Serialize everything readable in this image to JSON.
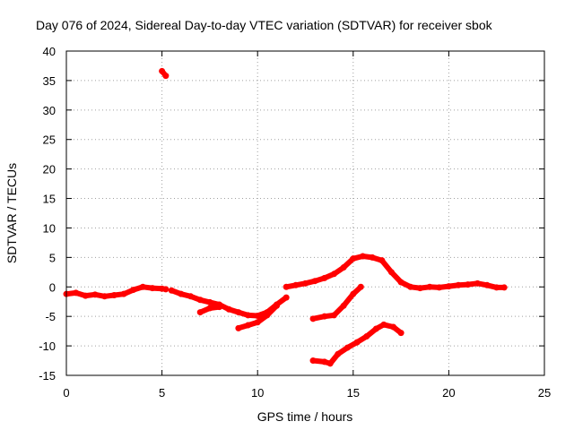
{
  "chart_data": {
    "type": "scatter",
    "title": "Day 076 of 2024, Sidereal Day-to-day VTEC variation (SDTVAR) for receiver sbok",
    "xlabel": "GPS time / hours",
    "ylabel": "SDTVAR / TECUs",
    "xlim": [
      0,
      25
    ],
    "ylim": [
      -15,
      40
    ],
    "xticks": [
      "0",
      "5",
      "10",
      "15",
      "20",
      "25"
    ],
    "yticks": [
      "-15",
      "-10",
      "-5",
      "0",
      "5",
      "10",
      "15",
      "20",
      "25",
      "30",
      "35",
      "40"
    ],
    "grid": true,
    "color": "#ff0000",
    "series": [
      {
        "name": "segment-1",
        "x": [
          0,
          0.5,
          1.0,
          1.5,
          2.0,
          2.5,
          3.0,
          3.5,
          4.0,
          4.5,
          5.0,
          5.2
        ],
        "y": [
          -1.2,
          -1.0,
          -1.5,
          -1.3,
          -1.6,
          -1.4,
          -1.2,
          -0.5,
          0.0,
          -0.2,
          -0.3,
          -0.4
        ]
      },
      {
        "name": "segment-spike",
        "x": [
          5.0,
          5.2
        ],
        "y": [
          36.6,
          35.8
        ]
      },
      {
        "name": "segment-2",
        "x": [
          5.5,
          6.0,
          6.5,
          7.0,
          7.5,
          8.0,
          8.5,
          9.0,
          9.5,
          10.0,
          10.5,
          11.0,
          11.5
        ],
        "y": [
          -0.6,
          -1.2,
          -1.6,
          -2.2,
          -2.6,
          -3.0,
          -3.8,
          -4.3,
          -4.8,
          -4.9,
          -4.3,
          -3.0,
          -1.8
        ]
      },
      {
        "name": "segment-2b",
        "x": [
          7.0,
          7.5,
          8.0
        ],
        "y": [
          -4.3,
          -3.6,
          -3.4
        ]
      },
      {
        "name": "segment-2c",
        "x": [
          9.0,
          9.5,
          10.0,
          10.5,
          11.0
        ],
        "y": [
          -7.0,
          -6.5,
          -6.0,
          -4.8,
          -3.2
        ]
      },
      {
        "name": "segment-3",
        "x": [
          11.5,
          12.0,
          12.5,
          13.0,
          13.5,
          14.0,
          14.5,
          15.0,
          15.5,
          16.0,
          16.5,
          17.0,
          17.5,
          18.0,
          18.5,
          19.0,
          19.5,
          20.0,
          20.5,
          21.0,
          21.5,
          22.0,
          22.5,
          22.9
        ],
        "y": [
          0.0,
          0.3,
          0.6,
          1.0,
          1.5,
          2.2,
          3.3,
          4.8,
          5.2,
          5.0,
          4.5,
          2.5,
          0.8,
          0.0,
          -0.2,
          0.0,
          -0.1,
          0.1,
          0.3,
          0.4,
          0.6,
          0.3,
          -0.1,
          -0.1
        ]
      },
      {
        "name": "segment-4",
        "x": [
          12.9,
          13.5,
          14.0,
          14.5,
          15.0,
          15.4
        ],
        "y": [
          -5.4,
          -5.0,
          -4.8,
          -3.2,
          -1.2,
          0.0
        ]
      },
      {
        "name": "segment-5",
        "x": [
          12.9,
          13.5,
          13.8,
          14.2,
          14.7,
          15.2,
          15.7,
          16.2,
          16.6,
          17.1,
          17.5
        ],
        "y": [
          -12.5,
          -12.7,
          -13.0,
          -11.4,
          -10.3,
          -9.4,
          -8.4,
          -7.1,
          -6.4,
          -6.8,
          -7.8
        ]
      }
    ]
  }
}
